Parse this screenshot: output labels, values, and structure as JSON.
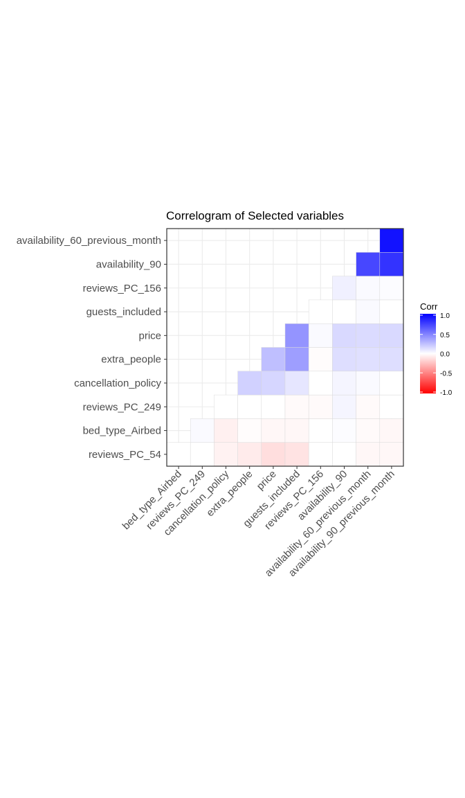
{
  "chart_data": {
    "type": "heatmap",
    "title": "Correlogram of Selected variables",
    "xlabel": "",
    "ylabel": "",
    "x_categories": [
      "bed_type_Airbed",
      "reviews_PC_249",
      "cancellation_policy",
      "extra_people",
      "price",
      "guests_included",
      "reviews_PC_156",
      "availability_90",
      "availability_60_previous_month",
      "availability_90_previous_month"
    ],
    "y_categories": [
      "reviews_PC_54",
      "bed_type_Airbed",
      "reviews_PC_249",
      "cancellation_policy",
      "extra_people",
      "price",
      "guests_included",
      "reviews_PC_156",
      "availability_90",
      "availability_60_previous_month"
    ],
    "cells": [
      {
        "x": "bed_type_Airbed",
        "y": "reviews_PC_54",
        "value": 0.0
      },
      {
        "x": "reviews_PC_249",
        "y": "reviews_PC_54",
        "value": 0.0
      },
      {
        "x": "cancellation_policy",
        "y": "reviews_PC_54",
        "value": -0.05
      },
      {
        "x": "extra_people",
        "y": "reviews_PC_54",
        "value": -0.08
      },
      {
        "x": "price",
        "y": "reviews_PC_54",
        "value": -0.13
      },
      {
        "x": "guests_included",
        "y": "reviews_PC_54",
        "value": -0.11
      },
      {
        "x": "reviews_PC_156",
        "y": "reviews_PC_54",
        "value": 0.0
      },
      {
        "x": "availability_90",
        "y": "reviews_PC_54",
        "value": 0.0
      },
      {
        "x": "availability_60_previous_month",
        "y": "reviews_PC_54",
        "value": -0.03
      },
      {
        "x": "availability_90_previous_month",
        "y": "reviews_PC_54",
        "value": -0.03
      },
      {
        "x": "reviews_PC_249",
        "y": "bed_type_Airbed",
        "value": 0.02
      },
      {
        "x": "cancellation_policy",
        "y": "bed_type_Airbed",
        "value": -0.06
      },
      {
        "x": "extra_people",
        "y": "bed_type_Airbed",
        "value": -0.01
      },
      {
        "x": "price",
        "y": "bed_type_Airbed",
        "value": -0.03
      },
      {
        "x": "guests_included",
        "y": "bed_type_Airbed",
        "value": -0.03
      },
      {
        "x": "reviews_PC_156",
        "y": "bed_type_Airbed",
        "value": 0.0
      },
      {
        "x": "availability_90",
        "y": "bed_type_Airbed",
        "value": 0.01
      },
      {
        "x": "availability_60_previous_month",
        "y": "bed_type_Airbed",
        "value": -0.02
      },
      {
        "x": "availability_90_previous_month",
        "y": "bed_type_Airbed",
        "value": -0.03
      },
      {
        "x": "cancellation_policy",
        "y": "reviews_PC_249",
        "value": 0.0
      },
      {
        "x": "extra_people",
        "y": "reviews_PC_249",
        "value": 0.0
      },
      {
        "x": "price",
        "y": "reviews_PC_249",
        "value": 0.0
      },
      {
        "x": "guests_included",
        "y": "reviews_PC_249",
        "value": -0.02
      },
      {
        "x": "reviews_PC_156",
        "y": "reviews_PC_249",
        "value": -0.02
      },
      {
        "x": "availability_90",
        "y": "reviews_PC_249",
        "value": 0.04
      },
      {
        "x": "availability_60_previous_month",
        "y": "reviews_PC_249",
        "value": -0.02
      },
      {
        "x": "availability_90_previous_month",
        "y": "reviews_PC_249",
        "value": 0.0
      },
      {
        "x": "extra_people",
        "y": "cancellation_policy",
        "value": 0.18
      },
      {
        "x": "price",
        "y": "cancellation_policy",
        "value": 0.16
      },
      {
        "x": "guests_included",
        "y": "cancellation_policy",
        "value": 0.1
      },
      {
        "x": "reviews_PC_156",
        "y": "cancellation_policy",
        "value": 0.0
      },
      {
        "x": "availability_90",
        "y": "cancellation_policy",
        "value": 0.04
      },
      {
        "x": "availability_60_previous_month",
        "y": "cancellation_policy",
        "value": 0.02
      },
      {
        "x": "availability_90_previous_month",
        "y": "cancellation_policy",
        "value": 0.0
      },
      {
        "x": "price",
        "y": "extra_people",
        "value": 0.25
      },
      {
        "x": "guests_included",
        "y": "extra_people",
        "value": 0.38
      },
      {
        "x": "reviews_PC_156",
        "y": "extra_people",
        "value": -0.01
      },
      {
        "x": "availability_90",
        "y": "extra_people",
        "value": 0.13
      },
      {
        "x": "availability_60_previous_month",
        "y": "extra_people",
        "value": 0.12
      },
      {
        "x": "availability_90_previous_month",
        "y": "extra_people",
        "value": 0.13
      },
      {
        "x": "guests_included",
        "y": "price",
        "value": 0.42
      },
      {
        "x": "reviews_PC_156",
        "y": "price",
        "value": 0.02
      },
      {
        "x": "availability_90",
        "y": "price",
        "value": 0.15
      },
      {
        "x": "availability_60_previous_month",
        "y": "price",
        "value": 0.14
      },
      {
        "x": "availability_90_previous_month",
        "y": "price",
        "value": 0.15
      },
      {
        "x": "reviews_PC_156",
        "y": "guests_included",
        "value": 0.0
      },
      {
        "x": "availability_90",
        "y": "guests_included",
        "value": 0.0
      },
      {
        "x": "availability_60_previous_month",
        "y": "guests_included",
        "value": 0.02
      },
      {
        "x": "availability_90_previous_month",
        "y": "guests_included",
        "value": 0.0
      },
      {
        "x": "availability_90",
        "y": "reviews_PC_156",
        "value": 0.06
      },
      {
        "x": "availability_60_previous_month",
        "y": "reviews_PC_156",
        "value": 0.02
      },
      {
        "x": "availability_90_previous_month",
        "y": "reviews_PC_156",
        "value": 0.01
      },
      {
        "x": "availability_60_previous_month",
        "y": "availability_90",
        "value": 0.72
      },
      {
        "x": "availability_90_previous_month",
        "y": "availability_90",
        "value": 0.8
      },
      {
        "x": "availability_90_previous_month",
        "y": "availability_60_previous_month",
        "value": 0.93
      }
    ],
    "legend": {
      "title": "Corr",
      "ticks": [
        "1.0",
        "0.5",
        "0.0",
        "-0.5",
        "-1.0"
      ],
      "tick_values": [
        1.0,
        0.5,
        0.0,
        -0.5,
        -1.0
      ],
      "placement": "right"
    },
    "value_range": [
      -1,
      1
    ],
    "colors": {
      "high": "#0000ff",
      "mid": "#ffffff",
      "low": "#ff0000",
      "grid": "#ebebeb",
      "panel_border": "#333333",
      "cell_outline": "#d9d9d9"
    },
    "grid": true
  }
}
